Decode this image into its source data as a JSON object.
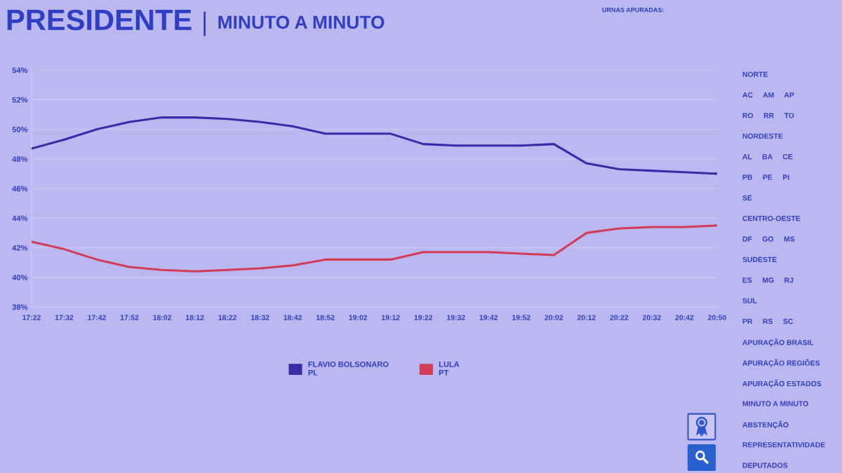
{
  "chart_data": {
    "type": "line",
    "title": "PRESIDENTE",
    "subtitle": "MINUTO A MINUTO",
    "categories": [
      "17:22",
      "17:32",
      "17:42",
      "17:52",
      "18:02",
      "18:12",
      "18:22",
      "18:32",
      "18:42",
      "18:52",
      "19:02",
      "19:12",
      "19:22",
      "19:32",
      "19:42",
      "19:52",
      "20:02",
      "20:12",
      "20:22",
      "20:32",
      "20:42",
      "20:50"
    ],
    "series": [
      {
        "name": "FLAVIO BOLSONARO\nPL",
        "color": "#3a2aa8",
        "values": [
          48.7,
          49.3,
          50.0,
          50.5,
          50.8,
          50.8,
          50.7,
          50.5,
          50.2,
          49.7,
          49.7,
          49.7,
          49.0,
          48.9,
          48.9,
          48.9,
          49.0,
          47.7,
          47.3,
          47.2,
          47.1,
          47.0
        ]
      },
      {
        "name": "LULA\nPT",
        "color": "#d23c55",
        "values": [
          42.4,
          41.9,
          41.2,
          40.7,
          40.5,
          40.4,
          40.5,
          40.6,
          40.8,
          41.2,
          41.2,
          41.2,
          41.7,
          41.7,
          41.7,
          41.6,
          41.5,
          43.0,
          43.3,
          43.4,
          43.4,
          43.5
        ]
      }
    ],
    "ylim": [
      38,
      54
    ],
    "yticks": [
      {
        "value": 38,
        "label": "38%"
      },
      {
        "value": 40,
        "label": "40%"
      },
      {
        "value": 42,
        "label": "42%"
      },
      {
        "value": 44,
        "label": "44%"
      },
      {
        "value": 46,
        "label": "46%"
      },
      {
        "value": 48,
        "label": "48%"
      },
      {
        "value": 50,
        "label": "50%"
      },
      {
        "value": 52,
        "label": "52%"
      },
      {
        "value": 54,
        "label": "54%"
      }
    ],
    "grid": "y",
    "legend": "bottom",
    "annotations": [
      "URNAS APURADAS:",
      "NORTE",
      "AC     AM     AP",
      "RO     RR     TO",
      "NORDESTE",
      "AL     BA     CE",
      "PB     PE     PI",
      "SE",
      "CENTRO-OESTE",
      "DF     GO     MS",
      "SUDESTE",
      "ES     MG     RJ",
      "SUL",
      "PR     RS     SC",
      "APURAÇÃO BRASIL",
      "APURAÇÃO REGIÕES",
      "APURAÇÃO ESTADOS",
      "MINUTO A MINUTO",
      "ABSTENÇÃO",
      "REPRESENTATIVIDADE",
      "DEPUTADOS"
    ]
  }
}
